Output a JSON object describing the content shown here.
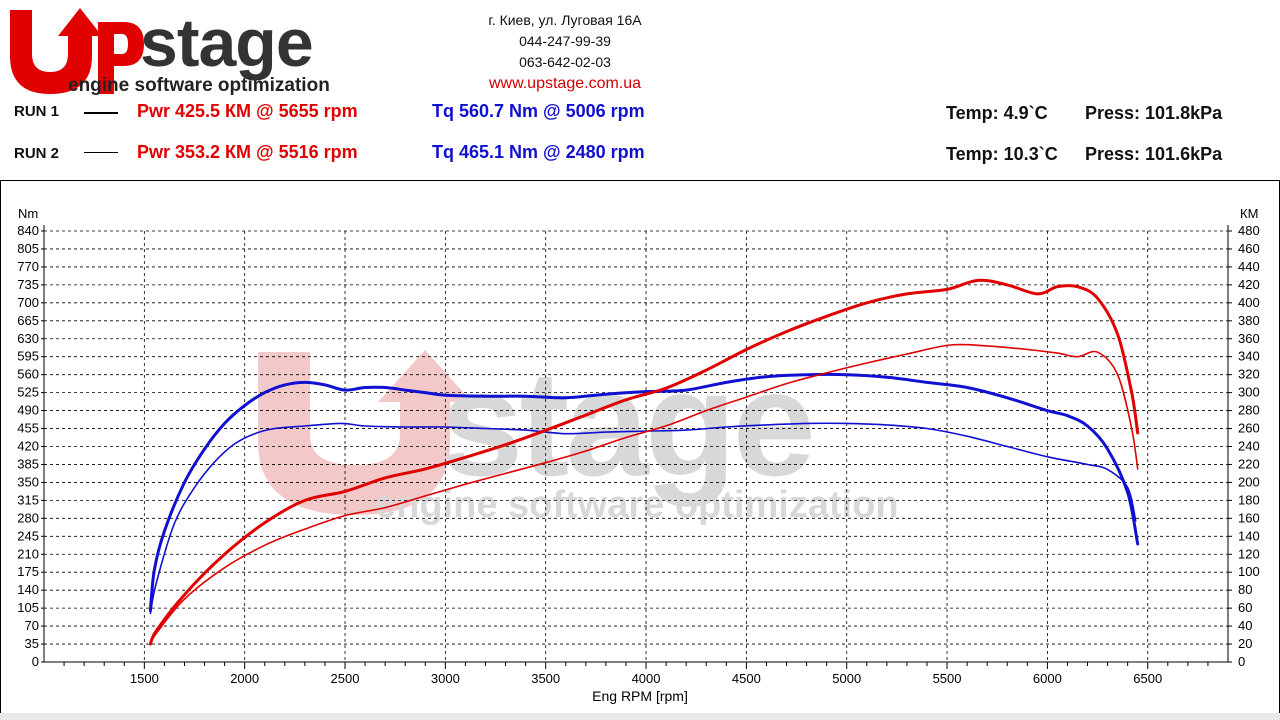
{
  "brand": {
    "logo_word": "Upstage",
    "logo_tagline": "engine software optimization"
  },
  "contact": {
    "address": "г. Киев, ул. Луговая 16А",
    "phone1": "044-247-99-39",
    "phone2": "063-642-02-03",
    "url": "www.upstage.com.ua"
  },
  "runs": [
    {
      "label": "RUN 1",
      "pwr": "Pwr  425.5 КМ @ 5655 rpm",
      "tq": "Tq 560.7 Nm @ 5006 rpm",
      "temp": "Temp: 4.9`C",
      "press": "Press: 101.8kPa"
    },
    {
      "label": "RUN 2",
      "pwr": "Pwr  353.2 КМ @ 5516 rpm",
      "tq": "Tq 465.1 Nm @ 2480 rpm",
      "temp": "Temp: 10.3`C",
      "press": "Press: 101.6kPa"
    }
  ],
  "colors": {
    "power": "#e00000",
    "torque": "#1010d0",
    "watermark_red": "#f2c8c8",
    "watermark_gray": "#d8d8d8"
  },
  "chart_data": {
    "type": "line",
    "xlabel": "Eng RPM [rpm]",
    "ylabel_left": "Nm",
    "ylabel_right": "КМ",
    "xlim": [
      1000,
      6900
    ],
    "ylim_left": [
      0,
      840
    ],
    "ylim_right": [
      0,
      480
    ],
    "x_ticks": [
      1500,
      2000,
      2500,
      3000,
      3500,
      4000,
      4500,
      5000,
      5500,
      6000,
      6500
    ],
    "y_ticks_left": [
      0,
      35,
      70,
      105,
      140,
      175,
      210,
      245,
      280,
      315,
      350,
      385,
      420,
      455,
      490,
      525,
      560,
      595,
      630,
      665,
      700,
      735,
      770,
      805,
      840
    ],
    "y_ticks_right": [
      0,
      20,
      40,
      60,
      80,
      100,
      120,
      140,
      160,
      180,
      200,
      220,
      240,
      260,
      280,
      300,
      320,
      340,
      360,
      380,
      400,
      420,
      440,
      460,
      480
    ],
    "grid": true,
    "series": [
      {
        "name": "RUN 1",
        "quantity": "Tq",
        "axis": "left",
        "unit": "Nm",
        "x": [
          1530,
          1550,
          1600,
          1700,
          1800,
          1900,
          2000,
          2100,
          2200,
          2300,
          2400,
          2500,
          2600,
          2700,
          2800,
          2900,
          3000,
          3200,
          3400,
          3600,
          3800,
          4000,
          4200,
          4400,
          4600,
          4800,
          5000,
          5200,
          5400,
          5600,
          5800,
          6000,
          6100,
          6200,
          6300,
          6400,
          6450
        ],
        "y": [
          100,
          180,
          255,
          350,
          415,
          465,
          500,
          525,
          540,
          545,
          540,
          530,
          535,
          535,
          530,
          525,
          520,
          518,
          518,
          515,
          522,
          527,
          530,
          545,
          556,
          560,
          560,
          555,
          545,
          535,
          515,
          490,
          480,
          460,
          415,
          330,
          230
        ]
      },
      {
        "name": "RUN 2",
        "quantity": "Tq",
        "axis": "left",
        "unit": "Nm",
        "x": [
          1530,
          1560,
          1650,
          1750,
          1850,
          1950,
          2050,
          2150,
          2300,
          2480,
          2600,
          2800,
          3000,
          3200,
          3400,
          3600,
          3800,
          4000,
          4200,
          4400,
          4600,
          4800,
          5000,
          5200,
          5400,
          5600,
          5800,
          6000,
          6200,
          6300,
          6400,
          6440
        ],
        "y": [
          95,
          155,
          270,
          340,
          390,
          425,
          445,
          455,
          460,
          465,
          460,
          458,
          458,
          455,
          452,
          445,
          448,
          450,
          452,
          458,
          462,
          465,
          465,
          462,
          455,
          440,
          420,
          400,
          385,
          375,
          340,
          275
        ]
      },
      {
        "name": "RUN 1",
        "quantity": "Pwr",
        "axis": "right",
        "unit": "КМ",
        "x": [
          1530,
          1560,
          1700,
          1900,
          2100,
          2300,
          2500,
          2700,
          2900,
          3100,
          3300,
          3500,
          3700,
          3900,
          4100,
          4300,
          4500,
          4700,
          4900,
          5100,
          5300,
          5500,
          5655,
          5800,
          5950,
          6050,
          6150,
          6250,
          6350,
          6420,
          6450
        ],
        "y": [
          20,
          35,
          75,
          120,
          155,
          180,
          190,
          205,
          215,
          228,
          242,
          258,
          275,
          292,
          305,
          325,
          348,
          368,
          385,
          400,
          410,
          415,
          425,
          420,
          410,
          418,
          418,
          405,
          365,
          300,
          255
        ]
      },
      {
        "name": "RUN 2",
        "quantity": "Pwr",
        "axis": "right",
        "unit": "КМ",
        "x": [
          1530,
          1560,
          1700,
          1900,
          2100,
          2300,
          2500,
          2700,
          2900,
          3100,
          3300,
          3500,
          3700,
          3900,
          4100,
          4300,
          4500,
          4700,
          4900,
          5100,
          5300,
          5516,
          5700,
          5900,
          6050,
          6150,
          6250,
          6350,
          6420,
          6450
        ],
        "y": [
          20,
          32,
          70,
          105,
          130,
          148,
          163,
          172,
          185,
          198,
          210,
          222,
          235,
          250,
          263,
          280,
          295,
          310,
          322,
          333,
          343,
          353,
          352,
          348,
          344,
          340,
          345,
          320,
          260,
          215
        ]
      }
    ]
  }
}
